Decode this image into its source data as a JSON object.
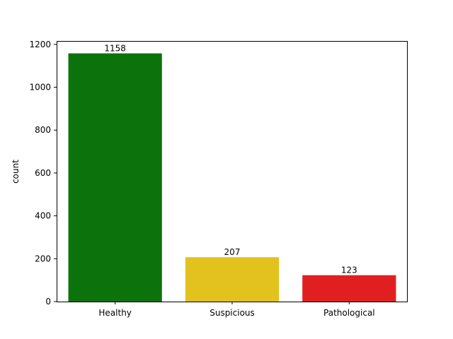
{
  "chart_data": {
    "type": "bar",
    "title": "",
    "xlabel": "",
    "ylabel": "count",
    "categories": [
      "Healthy",
      "Suspicious",
      "Pathological"
    ],
    "values": [
      1158,
      207,
      123
    ],
    "colors": [
      "#0c730c",
      "#e3c21e",
      "#e02020"
    ],
    "data_labels": [
      "1158",
      "207",
      "123"
    ],
    "ylim": [
      0,
      1215.9
    ],
    "yticks": [
      0,
      200,
      400,
      600,
      800,
      1000,
      1200
    ],
    "ytick_labels": [
      "0",
      "200",
      "400",
      "600",
      "800",
      "1000",
      "1200"
    ],
    "grid": false,
    "legend": "none"
  }
}
